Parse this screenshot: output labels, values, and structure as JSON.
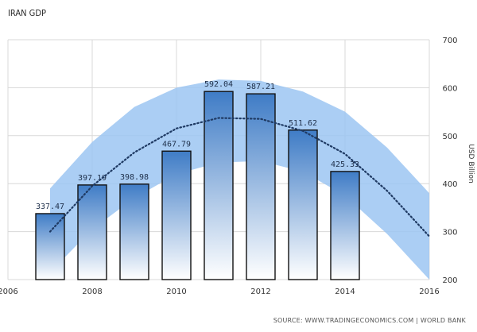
{
  "chart_data": {
    "type": "bar",
    "title": "IRAN GDP",
    "ylabel": "USD Billion",
    "source": "SOURCE: WWW.TRADINGECONOMICS.COM | WORLD BANK",
    "years": [
      2007,
      2008,
      2009,
      2010,
      2011,
      2012,
      2013,
      2014
    ],
    "values": [
      337.47,
      397.19,
      398.98,
      467.79,
      592.04,
      587.21,
      511.62,
      425.33
    ],
    "value_labels": [
      "337.47",
      "397.19",
      "398.98",
      "467.79",
      "592.04",
      "587.21",
      "511.62",
      "425.33"
    ],
    "xlim": [
      2006,
      2016
    ],
    "xticks": [
      2006,
      2008,
      2010,
      2012,
      2014,
      2016
    ],
    "ylim": [
      200,
      700
    ],
    "yticks": [
      200,
      300,
      400,
      500,
      600,
      700
    ],
    "trend": {
      "x": [
        2007,
        2008,
        2009,
        2010,
        2011,
        2012,
        2013,
        2014,
        2015,
        2016
      ],
      "y": [
        300,
        395,
        465,
        515,
        537,
        535,
        510,
        462,
        385,
        290
      ]
    },
    "band": {
      "x": [
        2007,
        2008,
        2009,
        2010,
        2011,
        2012,
        2013,
        2014,
        2015,
        2016
      ],
      "upper": [
        390,
        487,
        560,
        600,
        617,
        614,
        592,
        550,
        475,
        380
      ],
      "lower": [
        215,
        305,
        370,
        420,
        444,
        447,
        425,
        375,
        295,
        200
      ]
    },
    "colors": {
      "bar_top": "#3f7cc6",
      "bar_bottom": "#ffffff",
      "bar_stroke": "#111111",
      "band": "#9cc6f2",
      "trend": "#1f3a63",
      "grid": "#d8d8d8",
      "axis_text": "#333333",
      "label_text": "#1e2f4a"
    }
  }
}
